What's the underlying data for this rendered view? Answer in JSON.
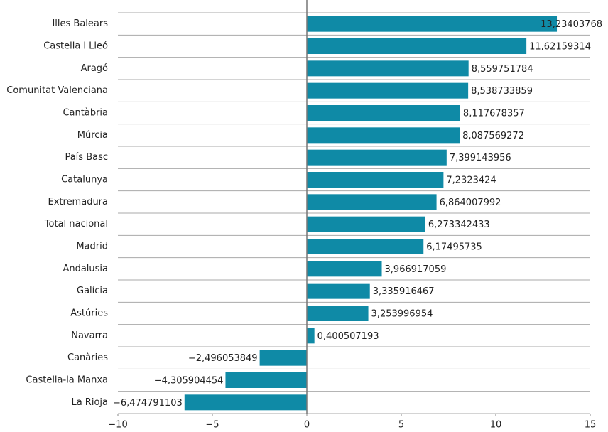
{
  "chart_data": {
    "type": "barh",
    "categories": [
      "Illes Balears",
      "Castella i Lleó",
      "Aragó",
      "Comunitat Valenciana",
      "Cantàbria",
      "Múrcia",
      "País Basc",
      "Catalunya",
      "Extremadura",
      "Total nacional",
      "Madrid",
      "Andalusia",
      "Galícia",
      "Astúries",
      "Navarra",
      "Canàries",
      "Castella-la Manxa",
      "La Rioja"
    ],
    "values": [
      13.23403768,
      11.62159314,
      8.559751784,
      8.538733859,
      8.117678357,
      8.087569272,
      7.399143956,
      7.2323424,
      6.864007992,
      6.273342433,
      6.17495735,
      3.966917059,
      3.335916467,
      3.253996954,
      0.400507193,
      -2.496053849,
      -4.305904454,
      -6.474791103
    ],
    "value_labels": [
      "13,23403768",
      "11,62159314",
      "8,559751784",
      "8,538733859",
      "8,117678357",
      "8,087569272",
      "7,399143956",
      "7,2323424",
      "6,864007992",
      "6,273342433",
      "6,17495735",
      "3,966917059",
      "3,335916467",
      "3,253996954",
      "0,400507193",
      "−2,496053849",
      "−4,305904454",
      "−6,474791103"
    ],
    "color": "#0f8aa6",
    "xlim": [
      -10,
      15
    ],
    "xticks": [
      {
        "value": -10,
        "label": "−10"
      },
      {
        "value": -5,
        "label": "−5"
      },
      0,
      5,
      10,
      15
    ],
    "grid": true
  }
}
